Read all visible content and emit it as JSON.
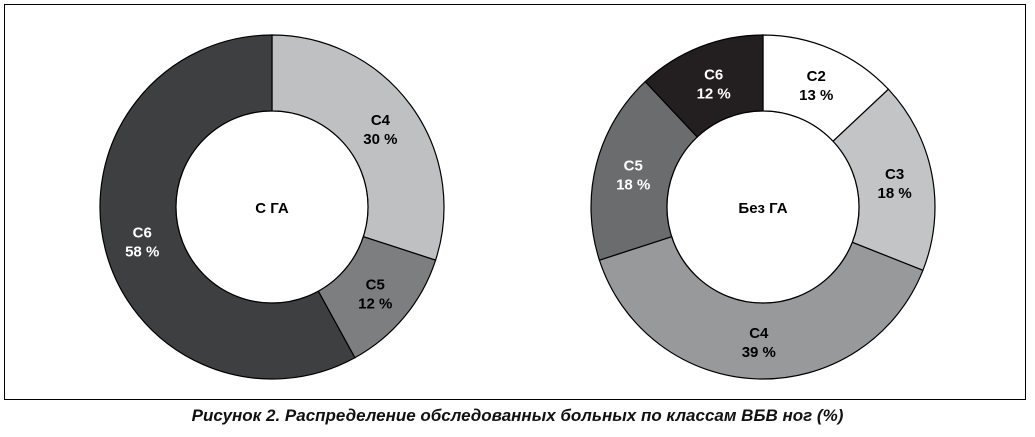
{
  "figure": {
    "caption": "Рисунок 2. Распределение обследованных больных по классам ВБВ ног (%)"
  },
  "chart_data": [
    {
      "type": "pie",
      "title": "",
      "center_label": "С ГА",
      "donut": true,
      "slices": [
        {
          "label": "С4",
          "value": 30,
          "value_text": "30 %",
          "color": "#bfc0c2",
          "text_color": "#000000"
        },
        {
          "label": "С5",
          "value": 12,
          "value_text": "12 %",
          "color": "#7d7e80",
          "text_color": "#000000"
        },
        {
          "label": "С6",
          "value": 58,
          "value_text": "58 %",
          "color": "#3e3f41",
          "text_color": "#ffffff"
        }
      ]
    },
    {
      "type": "pie",
      "title": "",
      "center_label": "Без ГА",
      "donut": true,
      "slices": [
        {
          "label": "С2",
          "value": 13,
          "value_text": "13 %",
          "color": "#ffffff",
          "text_color": "#000000"
        },
        {
          "label": "С3",
          "value": 18,
          "value_text": "18 %",
          "color": "#c3c4c6",
          "text_color": "#000000"
        },
        {
          "label": "С4",
          "value": 39,
          "value_text": "39 %",
          "color": "#98999b",
          "text_color": "#000000"
        },
        {
          "label": "С5",
          "value": 18,
          "value_text": "18 %",
          "color": "#6b6c6e",
          "text_color": "#ffffff"
        },
        {
          "label": "С6",
          "value": 12,
          "value_text": "12 %",
          "color": "#231f20",
          "text_color": "#ffffff"
        }
      ]
    }
  ]
}
